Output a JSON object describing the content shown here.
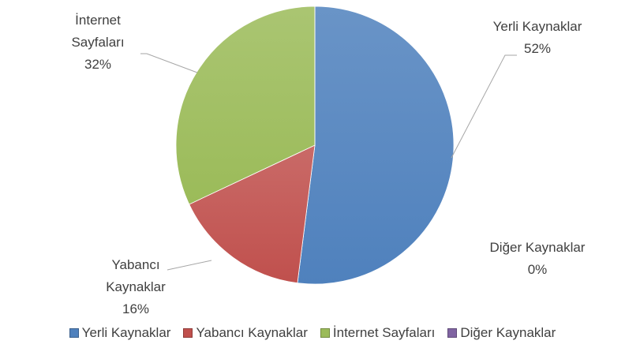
{
  "chart_data": {
    "type": "pie",
    "categories": [
      "Yerli Kaynaklar",
      "Yabancı Kaynaklar",
      "İnternet Sayfaları",
      "Diğer Kaynaklar"
    ],
    "values": [
      52,
      16,
      32,
      0
    ],
    "value_labels": [
      "52%",
      "16%",
      "32%",
      "0%"
    ],
    "colors": [
      "#4f81bd",
      "#c0504d",
      "#9bbb59",
      "#8064a2"
    ],
    "legend": "bottom"
  }
}
